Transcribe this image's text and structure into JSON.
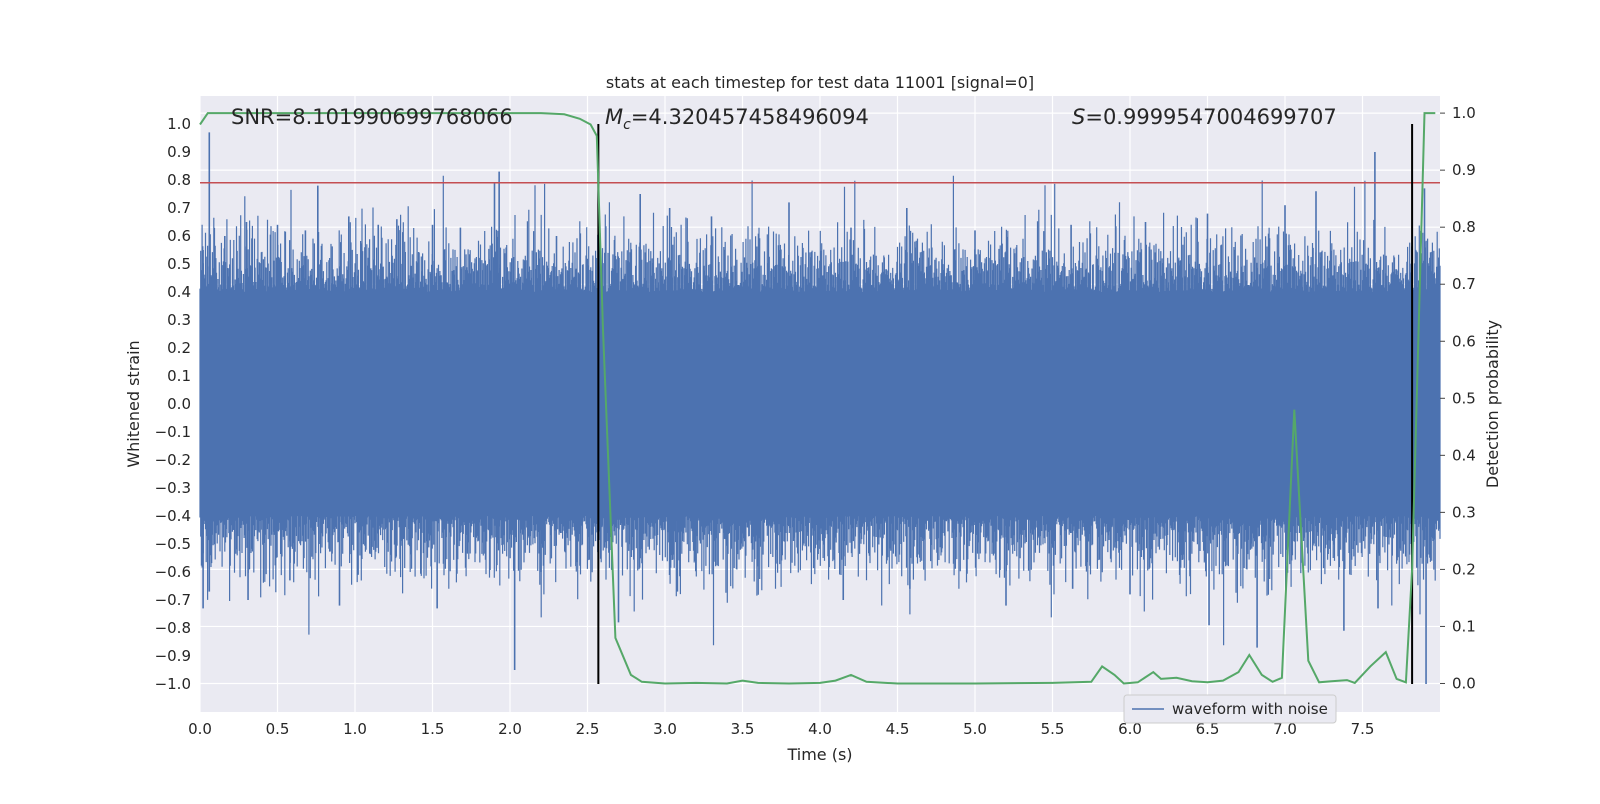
{
  "chart_data": {
    "type": "line",
    "title": "stats at each timestep for test data 11001 [signal=0]",
    "xlabel": "Time (s)",
    "ylabel_left": "Whitened strain",
    "ylabel_right": "Detection probability",
    "xlim": [
      0.0,
      8.0
    ],
    "ylim_left": [
      -1.1,
      1.1
    ],
    "ylim_right": [
      -0.05,
      1.03
    ],
    "x_ticks": [
      "0.0",
      "0.5",
      "1.0",
      "1.5",
      "2.0",
      "2.5",
      "3.0",
      "3.5",
      "4.0",
      "4.5",
      "5.0",
      "5.5",
      "6.0",
      "6.5",
      "7.0",
      "7.5"
    ],
    "y_ticks_left": [
      "1.0",
      "0.9",
      "0.8",
      "0.7",
      "0.6",
      "0.5",
      "0.4",
      "0.3",
      "0.2",
      "0.1",
      "0.0",
      "−0.1",
      "−0.2",
      "−0.3",
      "−0.4",
      "−0.5",
      "−0.6",
      "−0.7",
      "−0.8",
      "−0.9",
      "−1.0"
    ],
    "y_ticks_right": [
      "1.0",
      "0.9",
      "0.8",
      "0.7",
      "0.6",
      "0.5",
      "0.4",
      "0.3",
      "0.2",
      "0.1",
      "0.0"
    ],
    "annotations": {
      "snr": "SNR=8.101990699768066",
      "mc_symbol": "M",
      "mc_sub": "c",
      "mc_value": "=4.320457458496094",
      "s_symbol": "S",
      "s_value": "=0.9999547004699707"
    },
    "legend": {
      "label": "waveform with noise",
      "placement": "lower-right"
    },
    "threshold_strain": 0.79,
    "markers_time": [
      2.57,
      7.82
    ],
    "marker_range_strain": [
      -1.0,
      1.0
    ],
    "colors": {
      "waveform": "#4c72b0",
      "probability": "#55a868",
      "threshold": "#c44e52",
      "marker": "#000000",
      "plot_background": "#eaeaf2",
      "grid": "#ffffff"
    },
    "noise_waveform": {
      "description_series": "waveform with noise",
      "typical_envelope_pos": 0.4,
      "typical_envelope_neg": -0.4,
      "peaks": [
        {
          "t": 0.02,
          "v": 0.55
        },
        {
          "t": 0.06,
          "v": 0.97
        },
        {
          "t": 0.16,
          "v": 0.6
        },
        {
          "t": 0.3,
          "v": 0.65
        },
        {
          "t": 0.5,
          "v": 0.64
        },
        {
          "t": 0.68,
          "v": 0.62
        },
        {
          "t": 0.76,
          "v": 0.78
        },
        {
          "t": 0.96,
          "v": 0.67
        },
        {
          "t": 1.15,
          "v": 0.64
        },
        {
          "t": 1.27,
          "v": 0.66
        },
        {
          "t": 1.5,
          "v": 0.64
        },
        {
          "t": 1.68,
          "v": 0.63
        },
        {
          "t": 1.9,
          "v": 0.79
        },
        {
          "t": 1.93,
          "v": 0.83
        },
        {
          "t": 2.3,
          "v": 0.6
        },
        {
          "t": 2.58,
          "v": 0.61
        },
        {
          "t": 2.84,
          "v": 0.75
        },
        {
          "t": 3.03,
          "v": 0.7
        },
        {
          "t": 3.3,
          "v": 0.67
        },
        {
          "t": 3.8,
          "v": 0.72
        },
        {
          "t": 4.2,
          "v": 0.63
        },
        {
          "t": 4.56,
          "v": 0.7
        },
        {
          "t": 5.0,
          "v": 0.62
        },
        {
          "t": 5.62,
          "v": 0.64
        },
        {
          "t": 6.1,
          "v": 0.65
        },
        {
          "t": 6.5,
          "v": 0.68
        },
        {
          "t": 7.0,
          "v": 0.71
        },
        {
          "t": 7.2,
          "v": 0.76
        },
        {
          "t": 7.58,
          "v": 0.9
        },
        {
          "t": 7.9,
          "v": 0.77
        }
      ],
      "troughs": [
        {
          "t": 0.02,
          "v": -0.73
        },
        {
          "t": 0.06,
          "v": -0.67
        },
        {
          "t": 0.31,
          "v": -0.7
        },
        {
          "t": 0.58,
          "v": -0.63
        },
        {
          "t": 0.9,
          "v": -0.72
        },
        {
          "t": 1.02,
          "v": -0.61
        },
        {
          "t": 1.53,
          "v": -0.73
        },
        {
          "t": 2.03,
          "v": -0.95
        },
        {
          "t": 2.2,
          "v": -0.6
        },
        {
          "t": 2.7,
          "v": -0.78
        },
        {
          "t": 3.08,
          "v": -0.67
        },
        {
          "t": 3.6,
          "v": -0.58
        },
        {
          "t": 4.15,
          "v": -0.7
        },
        {
          "t": 4.58,
          "v": -0.66
        },
        {
          "t": 5.2,
          "v": -0.72
        },
        {
          "t": 5.63,
          "v": -0.66
        },
        {
          "t": 6.0,
          "v": -0.68
        },
        {
          "t": 6.51,
          "v": -0.79
        },
        {
          "t": 6.82,
          "v": -0.87
        },
        {
          "t": 7.38,
          "v": -0.81
        },
        {
          "t": 7.6,
          "v": -0.73
        },
        {
          "t": 7.91,
          "v": -1.0
        }
      ]
    },
    "probability_series": {
      "name": "detection probability",
      "x": [
        0.0,
        0.05,
        0.1,
        0.5,
        1.0,
        1.5,
        2.0,
        2.2,
        2.35,
        2.45,
        2.52,
        2.56,
        2.6,
        2.68,
        2.78,
        2.85,
        3.0,
        3.2,
        3.4,
        3.5,
        3.6,
        3.8,
        4.0,
        4.1,
        4.2,
        4.3,
        4.5,
        5.0,
        5.5,
        5.75,
        5.82,
        5.9,
        5.96,
        6.05,
        6.15,
        6.2,
        6.3,
        6.4,
        6.5,
        6.6,
        6.7,
        6.77,
        6.85,
        6.92,
        6.98,
        7.06,
        7.15,
        7.22,
        7.3,
        7.4,
        7.45,
        7.55,
        7.65,
        7.72,
        7.78,
        7.82,
        7.86,
        7.9,
        7.97
      ],
      "y": [
        0.98,
        1.0,
        1.0,
        1.0,
        1.0,
        1.0,
        1.0,
        1.0,
        0.998,
        0.99,
        0.98,
        0.96,
        0.62,
        0.08,
        0.015,
        0.003,
        0.0,
        0.001,
        0.0,
        0.005,
        0.001,
        0.0,
        0.001,
        0.005,
        0.015,
        0.003,
        0.0,
        0.0,
        0.001,
        0.003,
        0.03,
        0.015,
        0.0,
        0.002,
        0.02,
        0.008,
        0.01,
        0.004,
        0.002,
        0.005,
        0.02,
        0.05,
        0.015,
        0.003,
        0.01,
        0.48,
        0.04,
        0.002,
        0.004,
        0.006,
        0.001,
        0.03,
        0.055,
        0.008,
        0.002,
        0.2,
        0.6,
        1.0,
        1.0
      ]
    }
  }
}
